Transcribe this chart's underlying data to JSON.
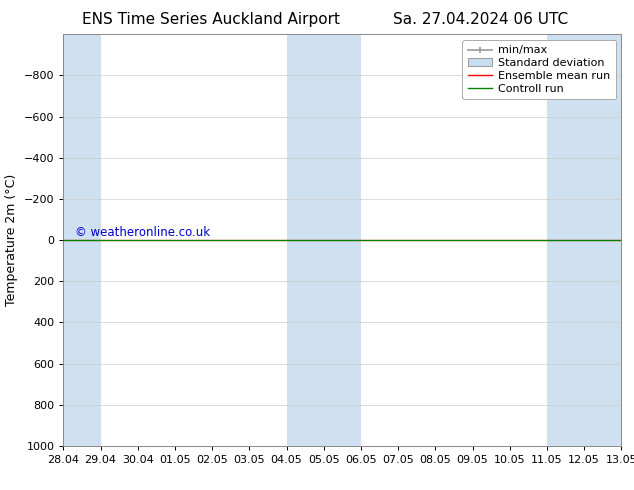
{
  "title_left": "ENS Time Series Auckland Airport",
  "title_right": "Sa. 27.04.2024 06 UTC",
  "ylabel": "Temperature 2m (°C)",
  "watermark": "© weatheronline.co.uk",
  "ylim_min": -1000,
  "ylim_max": 1000,
  "yticks": [
    -800,
    -600,
    -400,
    -200,
    0,
    200,
    400,
    600,
    800,
    1000
  ],
  "x_tick_labels": [
    "28.04",
    "29.04",
    "30.04",
    "01.05",
    "02.05",
    "03.05",
    "04.05",
    "05.05",
    "06.05",
    "07.05",
    "08.05",
    "09.05",
    "10.05",
    "11.05",
    "12.05",
    "13.05"
  ],
  "x_tick_positions": [
    0,
    1,
    2,
    3,
    4,
    5,
    6,
    7,
    8,
    9,
    10,
    11,
    12,
    13,
    14,
    15
  ],
  "shaded_bands": [
    {
      "xmin": 0,
      "xmax": 1,
      "color": "#cfe0f0"
    },
    {
      "xmin": 6,
      "xmax": 8,
      "color": "#cfe0f0"
    },
    {
      "xmin": 13,
      "xmax": 15,
      "color": "#cfe0f0"
    }
  ],
  "control_run_y": 0,
  "ensemble_mean_y": 0,
  "control_run_color": "#008000",
  "ensemble_mean_color": "#ff0000",
  "minmax_color": "#999999",
  "std_dev_color": "#c8ddf0",
  "background_color": "#ffffff",
  "plot_bg_color": "#ffffff",
  "grid_color": "#cccccc",
  "title_fontsize": 11,
  "axis_label_fontsize": 9,
  "tick_fontsize": 8,
  "legend_fontsize": 8,
  "watermark_color": "#0000cc",
  "watermark_fontsize": 8.5
}
